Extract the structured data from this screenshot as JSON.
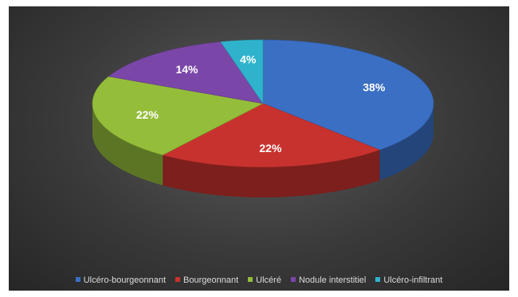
{
  "chart_data": {
    "type": "pie",
    "title": "",
    "categories": [
      "Ulcéro-bourgeonnant",
      "Bourgeonnant",
      "Ulcéré",
      "Nodule interstitiel",
      "Ulcéro-infiltrant"
    ],
    "values": [
      38,
      22,
      22,
      14,
      4
    ],
    "labels": [
      "38%",
      "22%",
      "22%",
      "14%",
      "4%"
    ],
    "colors": [
      "#3a6fc4",
      "#c8322e",
      "#94bd3a",
      "#7a47a8",
      "#2fb3cd"
    ],
    "legend": "bottom",
    "style": "3d"
  }
}
